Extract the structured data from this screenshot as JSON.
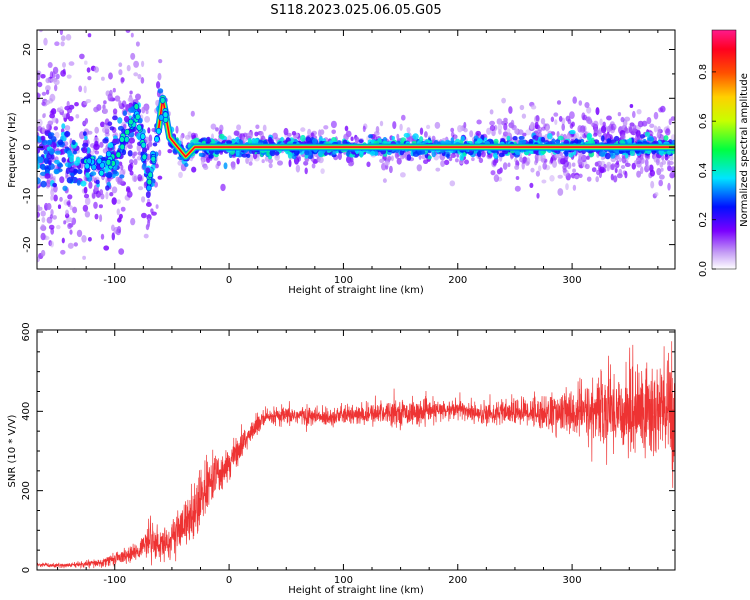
{
  "title": "S118.2023.025.06.05.G05",
  "chart_data": [
    {
      "type": "heatmap",
      "xlabel": "Height of straight line (km)",
      "ylabel": "Frequency (Hz)",
      "xlim": [
        -168,
        390
      ],
      "ylim": [
        -25,
        24
      ],
      "xticks": [
        -100,
        0,
        100,
        200,
        300
      ],
      "yticks": [
        -20,
        -10,
        0,
        10,
        20
      ],
      "grid": false,
      "colorbar": {
        "label": "Normalized spectral amplitude",
        "range": [
          0,
          0.97
        ],
        "ticks": [
          "0.0",
          "0.2",
          "0.4",
          "0.6",
          "0.8"
        ],
        "colormap": [
          "#ffffff",
          "#8a2be2",
          "#0000ff",
          "#00ffff",
          "#00ff00",
          "#ffff00",
          "#ff8c00",
          "#ff0000",
          "#ff1493"
        ]
      },
      "ridge": {
        "description_points_x": [
          -130,
          -110,
          -95,
          -85,
          -80,
          -70,
          -62,
          -58,
          -52,
          -45,
          -38,
          -30,
          0,
          100,
          200,
          300,
          390
        ],
        "frequency": [
          -2,
          -4,
          0,
          5,
          7,
          -7,
          3,
          10,
          2,
          0,
          -2,
          0,
          0,
          0,
          0,
          0,
          0
        ]
      }
    },
    {
      "type": "line",
      "xlabel": "Height of straight line (km)",
      "ylabel": "SNR (10 * V/V)",
      "xlim": [
        -168,
        390
      ],
      "ylim": [
        0,
        605
      ],
      "xticks": [
        -100,
        0,
        100,
        200,
        300
      ],
      "yticks": [
        0,
        200,
        400,
        600
      ],
      "grid": false,
      "series": [
        {
          "color": "#ee3333",
          "x": [
            -168,
            -140,
            -110,
            -100,
            -90,
            -80,
            -70,
            -60,
            -50,
            -40,
            -30,
            -20,
            -10,
            0,
            10,
            20,
            30,
            40,
            60,
            80,
            100,
            120,
            140,
            160,
            180,
            200,
            220,
            240,
            260,
            280,
            300,
            320,
            340,
            360,
            380,
            390
          ],
          "values": [
            12,
            12,
            18,
            30,
            35,
            45,
            80,
            60,
            80,
            110,
            150,
            210,
            240,
            270,
            310,
            350,
            380,
            385,
            390,
            385,
            390,
            390,
            400,
            395,
            400,
            405,
            395,
            395,
            400,
            395,
            395,
            400,
            405,
            400,
            400,
            400
          ],
          "noise_spread": [
            4,
            5,
            10,
            14,
            15,
            18,
            45,
            30,
            40,
            45,
            70,
            55,
            45,
            35,
            30,
            25,
            22,
            20,
            20,
            20,
            20,
            22,
            25,
            25,
            22,
            22,
            22,
            25,
            30,
            40,
            50,
            70,
            90,
            110,
            120,
            130
          ]
        }
      ]
    }
  ]
}
